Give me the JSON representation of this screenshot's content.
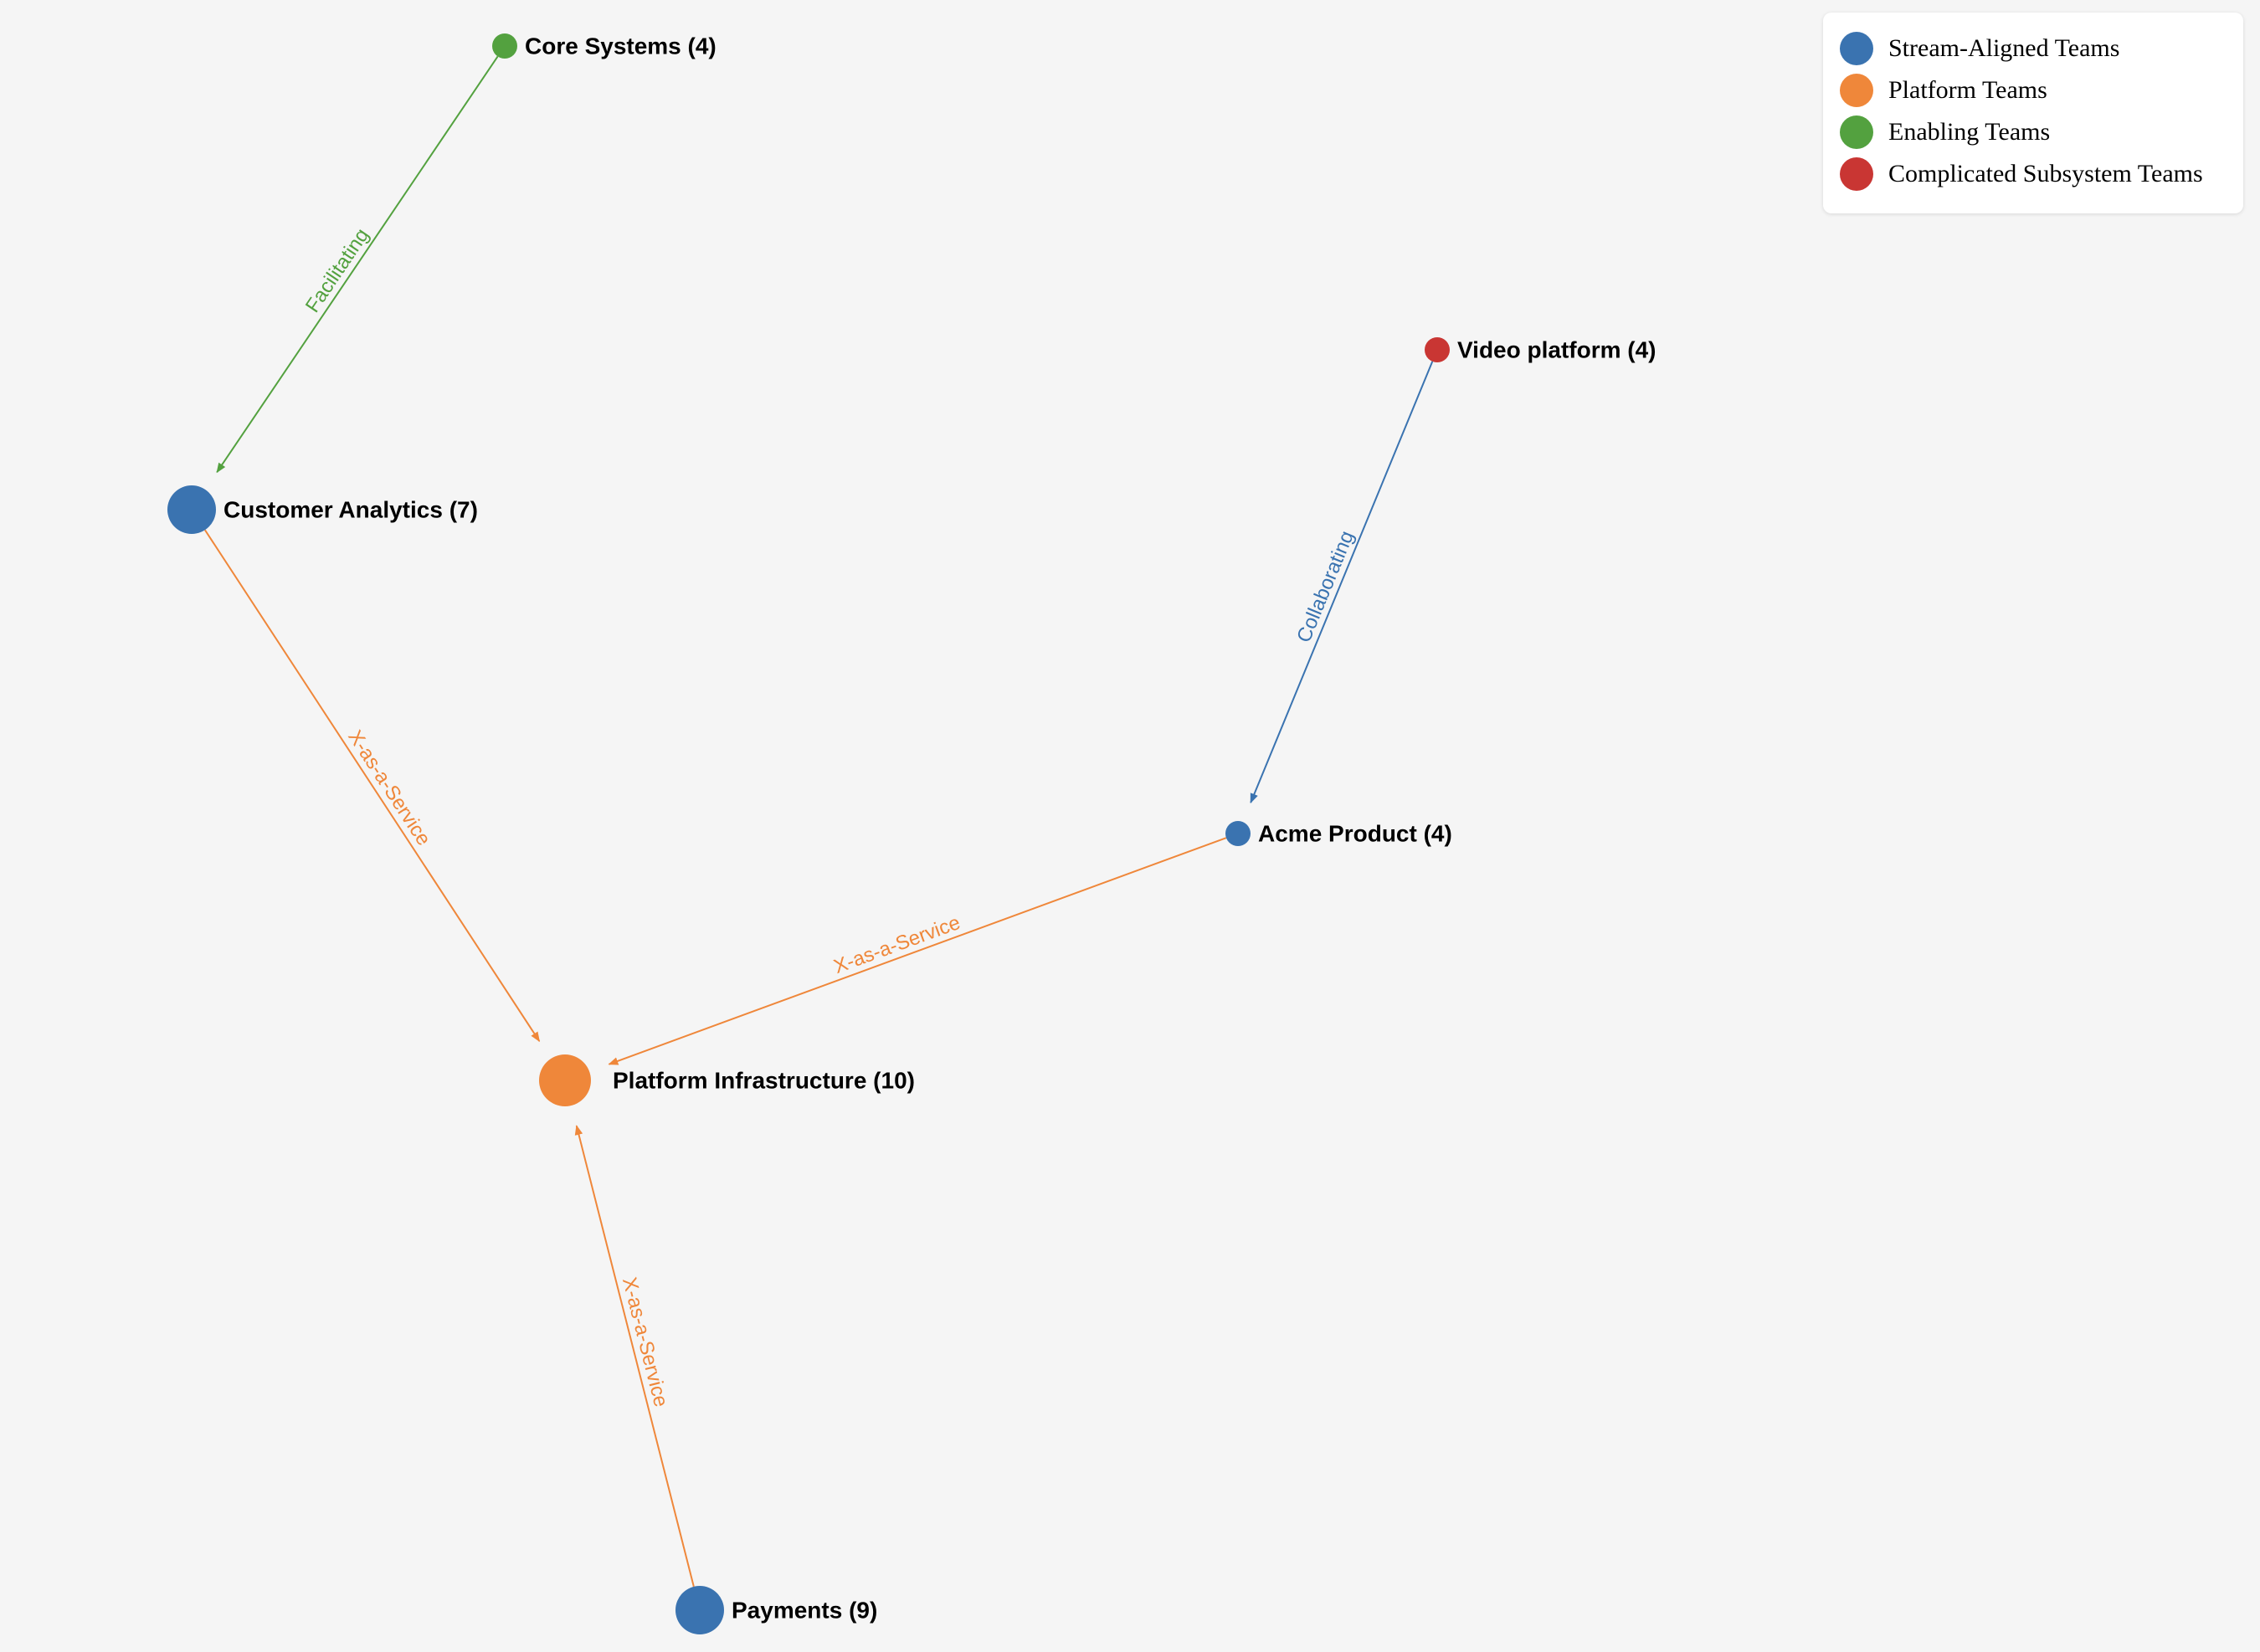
{
  "legend": {
    "items": [
      {
        "label": "Stream-Aligned Teams",
        "color": "#3a73b0",
        "type": "stream"
      },
      {
        "label": "Platform Teams",
        "color": "#ef873a",
        "type": "platform"
      },
      {
        "label": "Enabling Teams",
        "color": "#53a13f",
        "type": "enabling"
      },
      {
        "label": "Complicated Subsystem Teams",
        "color": "#c93633",
        "type": "subsystem"
      }
    ]
  },
  "nodes": [
    {
      "id": "core-systems",
      "label": "Core Systems (4)",
      "type": "enabling"
    },
    {
      "id": "customer-analytics",
      "label": "Customer Analytics (7)",
      "type": "stream"
    },
    {
      "id": "video-platform",
      "label": "Video platform (4)",
      "type": "subsystem"
    },
    {
      "id": "acme-product",
      "label": "Acme Product (4)",
      "type": "stream"
    },
    {
      "id": "platform-infrastructure",
      "label": "Platform Infrastructure (10)",
      "type": "platform"
    },
    {
      "id": "payments",
      "label": "Payments (9)",
      "type": "stream"
    }
  ],
  "edges": [
    {
      "id": "core-to-analytics",
      "from": "core-systems",
      "to": "customer-analytics",
      "label": "Facilitating",
      "color": "#53a13f"
    },
    {
      "id": "analytics-to-platform",
      "from": "customer-analytics",
      "to": "platform-infrastructure",
      "label": "X-as-a-Service",
      "color": "#ef873a"
    },
    {
      "id": "video-to-acme",
      "from": "video-platform",
      "to": "acme-product",
      "label": "Collaborating",
      "color": "#3a73b0"
    },
    {
      "id": "acme-to-platform",
      "from": "acme-product",
      "to": "platform-infrastructure",
      "label": "X-as-a-Service",
      "color": "#ef873a"
    },
    {
      "id": "payments-to-platform",
      "from": "payments",
      "to": "platform-infrastructure",
      "label": "X-as-a-Service",
      "color": "#ef873a"
    }
  ]
}
